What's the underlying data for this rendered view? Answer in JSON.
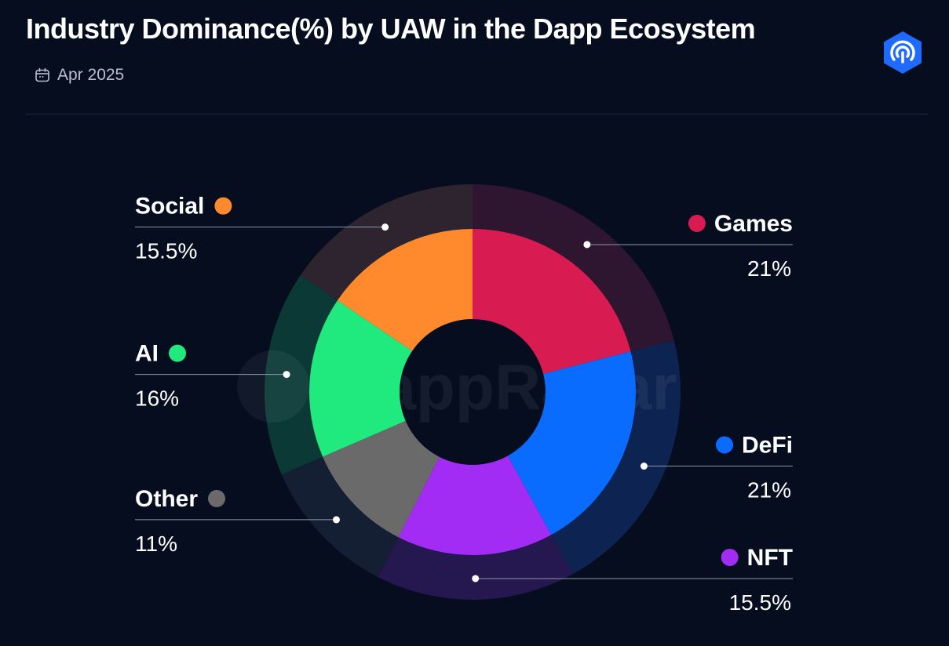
{
  "header": {
    "title": "Industry Dominance(%) by UAW in the Dapp Ecosystem",
    "date": "Apr 2025"
  },
  "icons": {
    "calendar": "calendar-icon",
    "brand": "dappradar-logo-icon"
  },
  "watermark": "DappRadar",
  "colors": {
    "background": "#050d1f",
    "brand": "#1f6bff"
  },
  "chart_data": {
    "type": "pie",
    "title": "Industry Dominance(%) by UAW in the Dapp Ecosystem",
    "subtitle": "Apr 2025",
    "slices": [
      {
        "label": "Games",
        "value": 21,
        "display": "21%",
        "color": "#d81b50",
        "ring_color": "#2e1530"
      },
      {
        "label": "DeFi",
        "value": 21,
        "display": "21%",
        "color": "#0a6bff",
        "ring_color": "#0d2352"
      },
      {
        "label": "NFT",
        "value": 15.5,
        "display": "15.5%",
        "color": "#a32cf5",
        "ring_color": "#251850"
      },
      {
        "label": "Other",
        "value": 11,
        "display": "11%",
        "color": "#6a6a6a",
        "ring_color": "#151f33"
      },
      {
        "label": "AI",
        "value": 16,
        "display": "16%",
        "color": "#20ea7e",
        "ring_color": "#0b3a36"
      },
      {
        "label": "Social",
        "value": 15.5,
        "display": "15.5%",
        "color": "#ff8a2e",
        "ring_color": "#2d2430"
      }
    ]
  }
}
